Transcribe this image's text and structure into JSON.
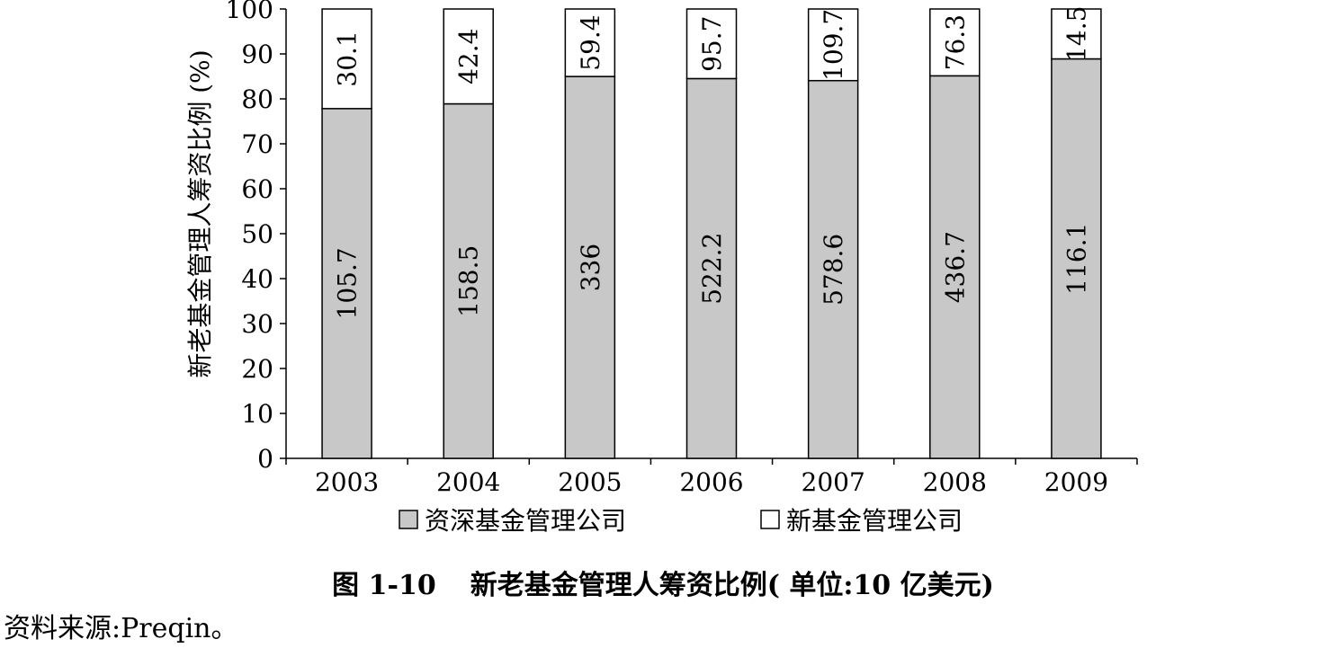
{
  "chart_data": {
    "type": "bar",
    "stacked": "percent",
    "categories": [
      "2003",
      "2004",
      "2005",
      "2006",
      "2007",
      "2008",
      "2009"
    ],
    "series": [
      {
        "name": "资深基金管理公司",
        "values": [
          105.7,
          158.5,
          336,
          522.2,
          578.6,
          436.7,
          116.1
        ],
        "color": "#c8c8c8"
      },
      {
        "name": "新基金管理公司",
        "values": [
          30.1,
          42.4,
          59.4,
          95.7,
          109.7,
          76.3,
          14.5
        ],
        "color": "#ffffff"
      }
    ],
    "value_labels": {
      "bottom": [
        "105.7",
        "158.5",
        "336",
        "522.2",
        "578.6",
        "436.7",
        "116.1"
      ],
      "top": [
        "30.1",
        "42.4",
        "59.4",
        "95.7",
        "109.7",
        "76.3",
        "14.5"
      ]
    },
    "ylabel": "新老基金管理人筹资比例 (%)",
    "ylim": [
      0,
      100
    ],
    "yticks": [
      "0",
      "10",
      "20",
      "30",
      "40",
      "50",
      "60",
      "70",
      "80",
      "90",
      "100"
    ],
    "legend_position": "bottom",
    "grid": false
  },
  "caption": {
    "number": "图 1-10",
    "text": "新老基金管理人筹资比例( 单位:10 亿美元)"
  },
  "source": "资料来源:Preqin。"
}
